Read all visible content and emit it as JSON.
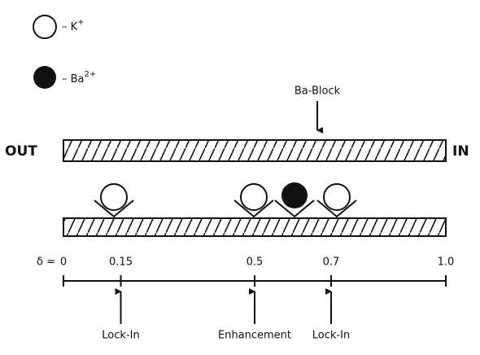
{
  "legend": [
    {
      "symbol": "K",
      "charge": "+"
    },
    {
      "symbol": "Ba",
      "charge": "2+"
    }
  ],
  "block_label": "Ba-Block",
  "sides": {
    "left": "OUT",
    "right": "IN"
  },
  "scale": {
    "symbol": "δ =",
    "ticks": [
      0,
      0.15,
      0.5,
      0.7,
      {
        "value": 1,
        "label": "1.0"
      }
    ]
  },
  "markers": [
    {
      "label": "Lock-In"
    },
    {
      "label": "Enhancement"
    },
    {
      "label": "Lock-In"
    }
  ]
}
